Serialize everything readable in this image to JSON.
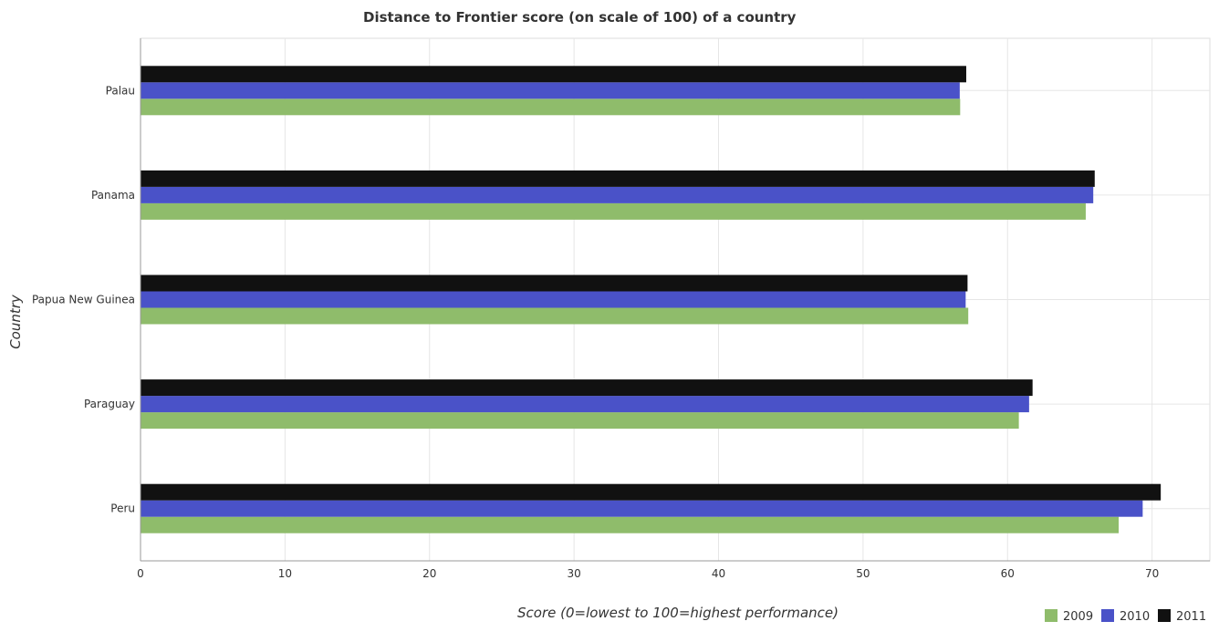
{
  "chart_data": {
    "type": "bar",
    "orientation": "horizontal",
    "title": "Distance to Frontier score (on scale of 100) of a country",
    "xlabel": "Score (0=lowest to 100=highest performance)",
    "ylabel": "Country",
    "categories": [
      "Palau",
      "Panama",
      "Papua New Guinea",
      "Paraguay",
      "Peru"
    ],
    "xlim": [
      0,
      74
    ],
    "xticks": [
      0,
      10,
      20,
      30,
      40,
      50,
      60,
      70
    ],
    "grid": true,
    "legend_position": "bottom-right",
    "series": [
      {
        "name": "2009",
        "color": "#8fbc6b",
        "values": [
          56.72,
          65.41,
          57.28,
          60.78,
          67.69
        ]
      },
      {
        "name": "2010",
        "color": "#4a52c8",
        "values": [
          56.69,
          65.93,
          57.1,
          61.49,
          69.35
        ]
      },
      {
        "name": "2011",
        "color": "#111111",
        "values": [
          57.14,
          66.03,
          57.23,
          61.73,
          70.6
        ]
      }
    ]
  }
}
